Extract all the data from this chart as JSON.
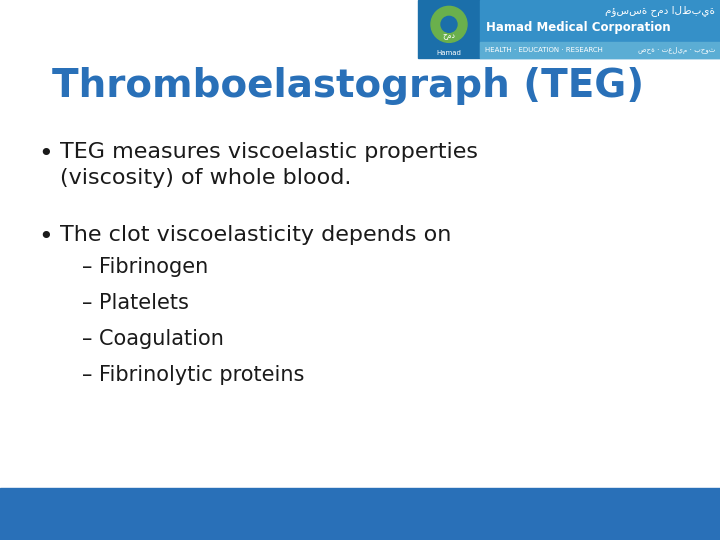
{
  "title": "Thromboelastograph (TEG)",
  "title_color": "#2970B8",
  "title_fontsize": 28,
  "background_color": "#FFFFFF",
  "bottom_bar_color": "#2970B8",
  "bullet1_line1": "TEG measures viscoelastic properties",
  "bullet1_line2": "(viscosity) of whole blood.",
  "bullet2": "The clot viscoelasticity depends on",
  "subitems": [
    "– Fibrinogen",
    "– Platelets",
    "– Coagulation",
    "– Fibrinolytic proteins"
  ],
  "bullet_color": "#1a1a1a",
  "bullet_fontsize": 16,
  "subitem_fontsize": 15,
  "logo_left_color": "#1B6FAA",
  "logo_right_color": "#3590C8",
  "logo_subbar_color": "#5BADD4",
  "logo_text_main": "Hamad Medical Corporation",
  "logo_text_sub": "HEALTH · EDUCATION · RESEARCH",
  "logo_arabic_main": "مؤسسة حمد الطبية",
  "logo_arabic_sub": "صحة · تعليم · بحوث",
  "logo_hamad_text": "Hamad",
  "icon_leaf_color": "#6AB04C",
  "icon_bg_color": "#1B6FAA"
}
